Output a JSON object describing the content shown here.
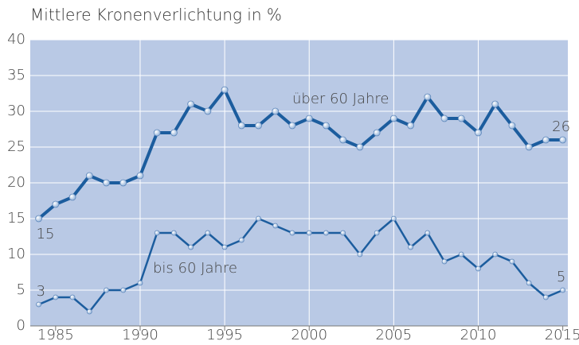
{
  "chart_data": {
    "type": "line",
    "title": "Mittlere Kronenverlichtung in %",
    "x": [
      1984,
      1985,
      1986,
      1987,
      1988,
      1989,
      1990,
      1991,
      1992,
      1993,
      1994,
      1995,
      1996,
      1997,
      1998,
      1999,
      2000,
      2001,
      2002,
      2003,
      2004,
      2005,
      2006,
      2007,
      2008,
      2009,
      2010,
      2011,
      2012,
      2013,
      2014,
      2015
    ],
    "series": [
      {
        "name": "über 60 Jahre",
        "color": "#1c5d9e",
        "values": [
          15,
          17,
          18,
          21,
          20,
          20,
          21,
          27,
          27,
          31,
          30,
          33,
          28,
          28,
          30,
          28,
          29,
          28,
          26,
          25,
          27,
          29,
          28,
          32,
          29,
          29,
          27,
          31,
          28,
          25,
          26,
          26
        ],
        "value_labels": [
          "15",
          null,
          null,
          null,
          null,
          null,
          null,
          null,
          null,
          null,
          null,
          null,
          null,
          null,
          null,
          null,
          null,
          null,
          null,
          null,
          null,
          null,
          null,
          null,
          null,
          null,
          null,
          null,
          null,
          null,
          null,
          "26"
        ]
      },
      {
        "name": "bis 60 Jahre",
        "color": "#1c5d9e",
        "values": [
          3,
          4,
          4,
          2,
          5,
          5,
          6,
          13,
          13,
          11,
          13,
          11,
          12,
          15,
          14,
          13,
          13,
          13,
          13,
          10,
          13,
          15,
          11,
          13,
          9,
          10,
          8,
          10,
          9,
          6,
          4,
          5
        ],
        "value_labels": [
          "3",
          null,
          null,
          null,
          null,
          null,
          null,
          null,
          null,
          null,
          null,
          null,
          null,
          null,
          null,
          null,
          null,
          null,
          null,
          null,
          null,
          null,
          null,
          null,
          null,
          null,
          null,
          null,
          null,
          null,
          null,
          "5"
        ]
      }
    ],
    "xlim": [
      1983.5,
      2015.3
    ],
    "xticks": [
      1985,
      1990,
      1995,
      2000,
      2005,
      2010,
      2015
    ],
    "ylim": [
      0,
      40
    ],
    "yticks": [
      0,
      5,
      10,
      15,
      20,
      25,
      30,
      35,
      40
    ],
    "grid": true,
    "plot_background": "#b9c9e5"
  }
}
